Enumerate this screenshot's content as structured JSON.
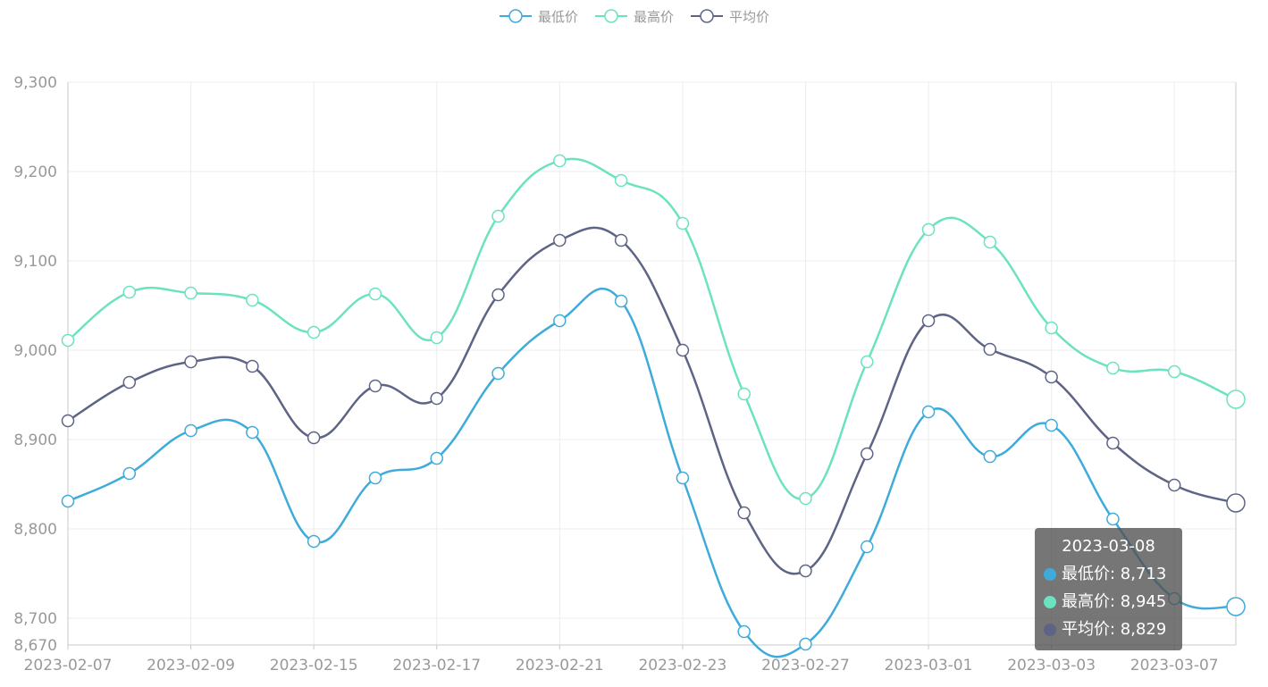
{
  "colors": {
    "min": "#3fabda",
    "max": "#6be2c0",
    "avg": "#5d6485"
  },
  "legend": [
    {
      "key": "min",
      "label": "最低价",
      "color": "#3fabda"
    },
    {
      "key": "max",
      "label": "最高价",
      "color": "#6be2c0"
    },
    {
      "key": "avg",
      "label": "平均价",
      "color": "#5d6485"
    }
  ],
  "tooltip": {
    "title": "2023-03-08",
    "rows": [
      {
        "label": "最低价: 8,713",
        "color": "#3fabda"
      },
      {
        "label": "最高价: 8,945",
        "color": "#6be2c0"
      },
      {
        "label": "平均价: 8,829",
        "color": "#5d6485"
      }
    ]
  },
  "chart_data": {
    "type": "line",
    "smooth": true,
    "grid": true,
    "legend_position": "top-center",
    "ylim": [
      8670,
      9300
    ],
    "yticks": [
      8670,
      8700,
      8800,
      8900,
      9000,
      9100,
      9200,
      9300
    ],
    "ytick_labels": [
      "8,670",
      "8,700",
      "8,800",
      "8,900",
      "9,000",
      "9,100",
      "9,200",
      "9,300"
    ],
    "xtick_labels": [
      "2023-02-07",
      "2023-02-09",
      "2023-02-15",
      "2023-02-17",
      "2023-02-21",
      "2023-02-23",
      "2023-02-27",
      "2023-03-01",
      "2023-03-03",
      "2023-03-07"
    ],
    "highlight_last": true,
    "series": [
      {
        "name": "最低价",
        "key": "min",
        "values": [
          8831,
          8862,
          8910,
          8908,
          8786,
          8857,
          8879,
          8974,
          9033,
          9055,
          8857,
          8685,
          8671,
          8780,
          8931,
          8881,
          8916,
          8811,
          8722,
          8713
        ]
      },
      {
        "name": "最高价",
        "key": "max",
        "values": [
          9011,
          9065,
          9064,
          9056,
          9020,
          9063,
          9014,
          9150,
          9212,
          9190,
          9142,
          8951,
          8834,
          8987,
          9135,
          9121,
          9025,
          8980,
          8976,
          8945
        ]
      },
      {
        "name": "平均价",
        "key": "avg",
        "values": [
          8921,
          8964,
          8987,
          8982,
          8902,
          8960,
          8946,
          9062,
          9123,
          9123,
          9000,
          8818,
          8753,
          8884,
          9033,
          9001,
          8970,
          8896,
          8849,
          8829
        ]
      }
    ]
  }
}
